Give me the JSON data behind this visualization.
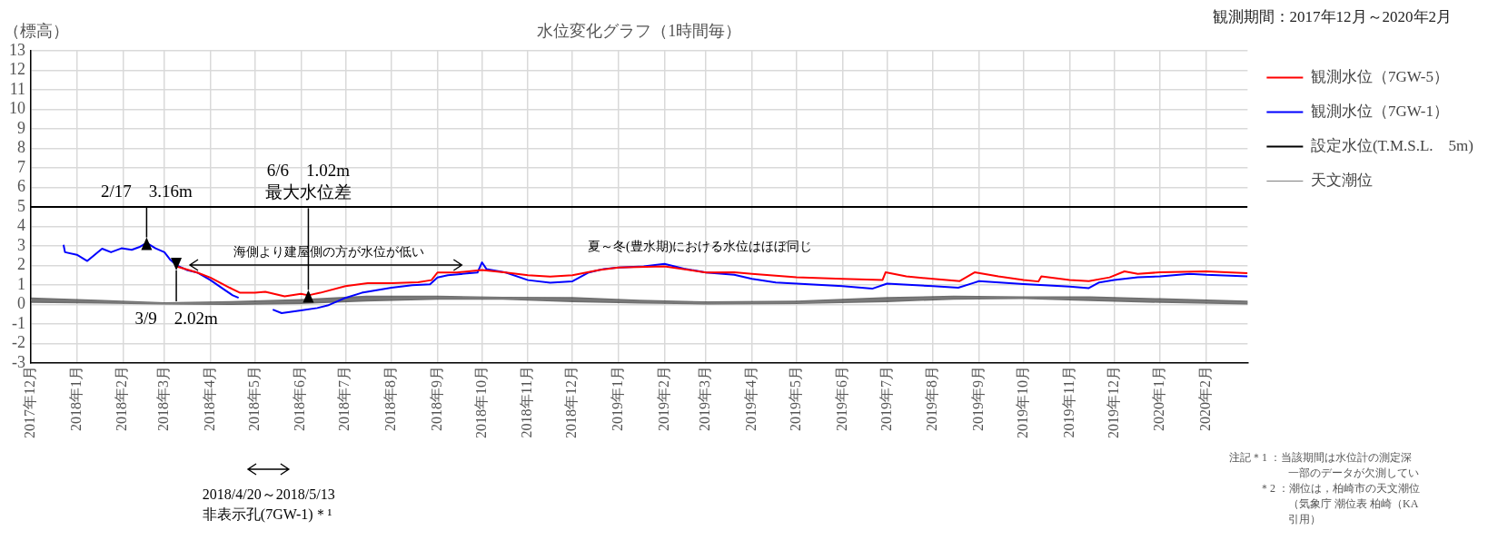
{
  "chart_data": {
    "type": "line",
    "title": "水位変化グラフ（1時間毎）",
    "subtitle": "観測期間：2017年12月～2020年2月",
    "ylabel": "（標高）",
    "xlim": [
      "2017-12-01",
      "2020-02-29"
    ],
    "xticks": [
      {
        "value": "2017-12",
        "label": "2017年12月"
      },
      {
        "value": "2018-01",
        "label": "2018年1月"
      },
      {
        "value": "2018-02",
        "label": "2018年2月"
      },
      {
        "value": "2018-03",
        "label": "2018年3月"
      },
      {
        "value": "2018-04",
        "label": "2018年4月"
      },
      {
        "value": "2018-05",
        "label": "2018年5月"
      },
      {
        "value": "2018-06",
        "label": "2018年6月"
      },
      {
        "value": "2018-07",
        "label": "2018年7月"
      },
      {
        "value": "2018-08",
        "label": "2018年8月"
      },
      {
        "value": "2018-09",
        "label": "2018年9月"
      },
      {
        "value": "2018-10",
        "label": "2018年10月"
      },
      {
        "value": "2018-11",
        "label": "2018年11月"
      },
      {
        "value": "2018-12",
        "label": "2018年12月"
      },
      {
        "value": "2019-01",
        "label": "2019年1月"
      },
      {
        "value": "2019-02",
        "label": "2019年2月"
      },
      {
        "value": "2019-03",
        "label": "2019年3月"
      },
      {
        "value": "2019-04",
        "label": "2019年4月"
      },
      {
        "value": "2019-05",
        "label": "2019年5月"
      },
      {
        "value": "2019-06",
        "label": "2019年6月"
      },
      {
        "value": "2019-07",
        "label": "2019年7月"
      },
      {
        "value": "2019-08",
        "label": "2019年8月"
      },
      {
        "value": "2019-09",
        "label": "2019年9月"
      },
      {
        "value": "2019-10",
        "label": "2019年10月"
      },
      {
        "value": "2019-11",
        "label": "2019年11月"
      },
      {
        "value": "2019-12",
        "label": "2019年12月"
      },
      {
        "value": "2020-01",
        "label": "2020年1月"
      },
      {
        "value": "2020-02",
        "label": "2020年2月"
      }
    ],
    "ylim": [
      -3,
      13
    ],
    "yticks": [
      -3,
      -2,
      -1,
      0,
      1,
      2,
      3,
      4,
      5,
      6,
      7,
      8,
      9,
      10,
      11,
      12,
      13
    ],
    "grid": true,
    "legend": "right",
    "marker": "none",
    "series": [
      {
        "name": "天文潮位",
        "color": "#808080",
        "x": [
          "2017-12-01",
          "2018-01-15",
          "2018-03-01",
          "2018-04-15",
          "2018-06-01",
          "2018-07-15",
          "2018-09-01",
          "2018-10-15",
          "2018-12-01",
          "2019-01-15",
          "2019-03-01",
          "2019-05-01",
          "2019-07-01",
          "2019-08-15",
          "2019-10-01",
          "2019-11-15",
          "2020-01-01",
          "2020-02-29"
        ],
        "values": [
          0.22,
          0.15,
          0.05,
          0.08,
          0.15,
          0.3,
          0.35,
          0.32,
          0.25,
          0.15,
          0.08,
          0.1,
          0.25,
          0.35,
          0.35,
          0.3,
          0.2,
          0.1
        ],
        "lower": [
          0.08,
          0.05,
          0,
          -0.02,
          0.02,
          0.15,
          0.25,
          0.25,
          0.12,
          0.05,
          0,
          0.02,
          0.12,
          0.25,
          0.28,
          0.18,
          0.08,
          0
        ],
        "upper": [
          0.36,
          0.25,
          0.12,
          0.18,
          0.28,
          0.45,
          0.45,
          0.4,
          0.38,
          0.25,
          0.16,
          0.2,
          0.38,
          0.45,
          0.42,
          0.42,
          0.32,
          0.2
        ]
      },
      {
        "name": "設定水位(T.M.S.L.　5m)",
        "color": "#000000",
        "x": [
          "2017-12-01",
          "2020-02-29"
        ],
        "values": [
          5,
          5
        ]
      },
      {
        "name": "観測水位（7GW-1）",
        "color": "#0000ff",
        "x": [
          "2017-12-23",
          "2017-12-24",
          "2018-01-01",
          "2018-01-08",
          "2018-01-13",
          "2018-01-18",
          "2018-01-24",
          "2018-01-31",
          "2018-02-07",
          "2018-02-12",
          "2018-02-17",
          "2018-02-23",
          "2018-03-01",
          "2018-03-05",
          "2018-03-09",
          "2018-03-16",
          "2018-03-23",
          "2018-04-01",
          "2018-04-11",
          "2018-04-16",
          "2018-04-20",
          "2018-05-01",
          "2018-05-13",
          "2018-05-19",
          "2018-05-31",
          "2018-06-12",
          "2018-06-19",
          "2018-07-01",
          "2018-07-12",
          "2018-08-01",
          "2018-08-15",
          "2018-08-27",
          "2018-09-01",
          "2018-09-08",
          "2018-09-28",
          "2018-10-01",
          "2018-10-04",
          "2018-10-17",
          "2018-11-01",
          "2018-11-16",
          "2018-12-01",
          "2018-12-12",
          "2018-12-22",
          "2019-01-01",
          "2019-01-18",
          "2019-02-01",
          "2019-02-14",
          "2019-03-01",
          "2019-03-20",
          "2019-04-01",
          "2019-04-17",
          "2019-05-01",
          "2019-06-01",
          "2019-06-21",
          "2019-07-01",
          "2019-08-01",
          "2019-08-18",
          "2019-08-28",
          "2019-09-01",
          "2019-10-01",
          "2019-11-01",
          "2019-11-14",
          "2019-11-21",
          "2019-12-01",
          "2019-12-17",
          "2020-01-01",
          "2020-01-21",
          "2020-02-01",
          "2020-02-29"
        ],
        "values": [
          3.06,
          2.68,
          2.55,
          2.23,
          2.55,
          2.86,
          2.68,
          2.88,
          2.8,
          2.94,
          3.16,
          2.88,
          2.68,
          2.29,
          2.02,
          1.77,
          1.64,
          1.25,
          0.73,
          0.47,
          0.34,
          null,
          -0.26,
          -0.44,
          -0.31,
          -0.18,
          -0.05,
          0.34,
          0.6,
          0.86,
          0.99,
          1.04,
          1.38,
          1.5,
          1.64,
          2.16,
          1.82,
          1.64,
          1.25,
          1.12,
          1.19,
          1.64,
          1.82,
          1.9,
          1.95,
          2.08,
          1.84,
          1.64,
          1.52,
          1.31,
          1.13,
          1.07,
          0.94,
          0.81,
          1.07,
          0.94,
          0.86,
          1.1,
          1.2,
          1.05,
          0.92,
          0.84,
          1.13,
          1.26,
          1.39,
          1.44,
          1.57,
          1.52,
          1.44
        ]
      },
      {
        "name": "観測水位（7GW-5）",
        "color": "#ff0000",
        "x": [
          "2018-03-09",
          "2018-03-23",
          "2018-04-01",
          "2018-04-14",
          "2018-04-21",
          "2018-05-01",
          "2018-05-08",
          "2018-05-21",
          "2018-06-01",
          "2018-06-06",
          "2018-06-14",
          "2018-07-01",
          "2018-07-16",
          "2018-08-01",
          "2018-08-19",
          "2018-08-28",
          "2018-09-01",
          "2018-09-14",
          "2018-10-01",
          "2018-10-17",
          "2018-11-01",
          "2018-11-16",
          "2018-12-01",
          "2018-12-19",
          "2019-01-01",
          "2019-02-01",
          "2019-03-01",
          "2019-03-20",
          "2019-04-01",
          "2019-05-01",
          "2019-06-01",
          "2019-06-28",
          "2019-06-30",
          "2019-07-14",
          "2019-08-01",
          "2019-08-19",
          "2019-08-29",
          "2019-09-14",
          "2019-10-01",
          "2019-10-11",
          "2019-10-13",
          "2019-11-01",
          "2019-11-14",
          "2019-11-28",
          "2019-12-08",
          "2019-12-17",
          "2020-01-01",
          "2020-02-01",
          "2020-02-29"
        ],
        "values": [
          1.95,
          1.64,
          1.38,
          0.86,
          0.6,
          0.6,
          0.65,
          0.42,
          0.55,
          0.47,
          0.6,
          0.94,
          1.09,
          1.09,
          1.14,
          1.25,
          1.64,
          1.64,
          1.77,
          1.64,
          1.5,
          1.43,
          1.5,
          1.77,
          1.9,
          1.95,
          1.64,
          1.65,
          1.57,
          1.39,
          1.31,
          1.26,
          1.65,
          1.44,
          1.31,
          1.2,
          1.65,
          1.44,
          1.26,
          1.18,
          1.44,
          1.26,
          1.2,
          1.39,
          1.7,
          1.57,
          1.65,
          1.7,
          1.6
        ]
      }
    ],
    "annotations": [
      "海側より建屋側の方が水位が低い",
      "夏～冬(豊水期)における水位はほぼ同じ",
      "2018/4/20～2018/5/13",
      "非表示孔(7GW-1)＊¹",
      "注記＊1 ：当該期間は水位計の測定深",
      "一部のデータが欠測してい",
      "＊2 ：潮位は，柏崎市の天文潮位",
      "（気象庁 潮位表 柏崎（KA",
      "引用）",
      {
        "text": "2/17　3.16m",
        "x": "2018-02-17",
        "y": 3.16
      },
      {
        "text": "3/9　2.02m",
        "x": "2018-03-09",
        "y": 2.02
      },
      {
        "text": "6/6　1.02m\n最大水位差",
        "x": "2018-06-06",
        "y": 0.47
      }
    ]
  }
}
